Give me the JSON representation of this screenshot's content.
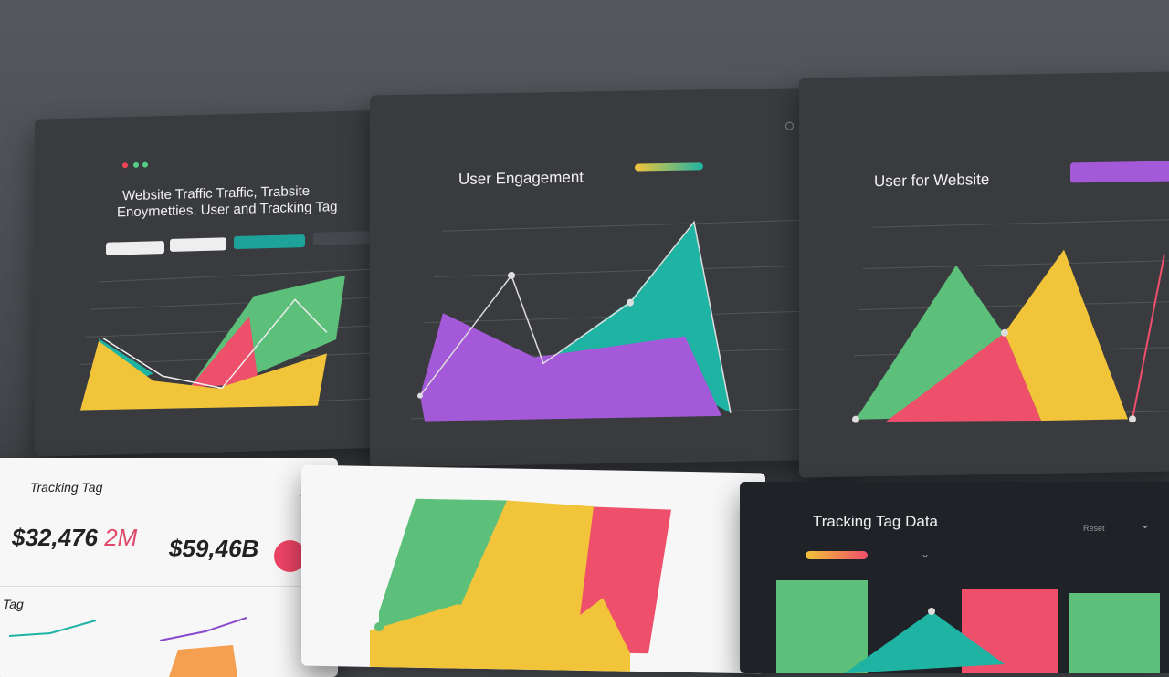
{
  "panel_traffic": {
    "title_line1": "Website Traffic Traffic, Trabsite",
    "title_line2": "Enoyrnetties, User and Tracking Tag",
    "buttons": [
      "",
      "",
      "",
      ""
    ]
  },
  "panel_engagement": {
    "title": "User Engagement"
  },
  "panel_website": {
    "title": "User for Website"
  },
  "panel_tracking": {
    "title": "Tracking Tag",
    "value1": "$32,476",
    "value1_suffix": "2M",
    "value2": "$59,46B",
    "section": "Tag"
  },
  "panel_tag_data": {
    "title": "Tracking Tag Data",
    "reset_label": "Reset"
  },
  "colors": {
    "green": "#5cbf7a",
    "yellow": "#f2c43a",
    "pink": "#ee4f6a",
    "teal": "#1fb3a3",
    "purple": "#a45ad8"
  }
}
